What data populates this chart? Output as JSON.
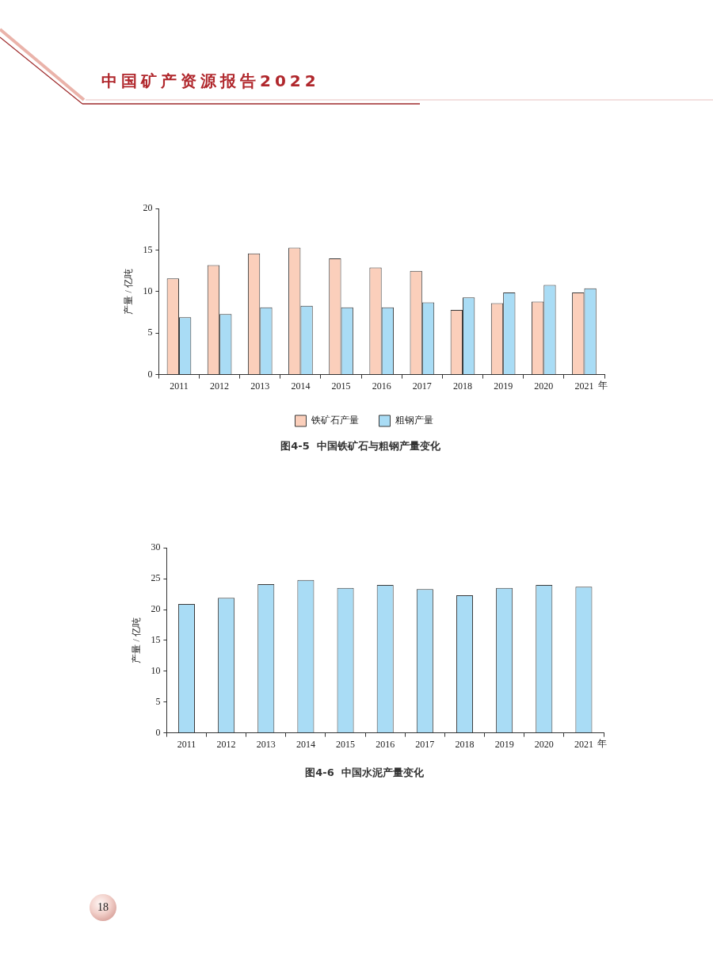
{
  "chart_data": [
    {
      "type": "bar",
      "title": "图4-5  中国铁矿石与粗钢产量变化",
      "xlabel": "年",
      "ylabel": "产量 / 亿吨",
      "annotations": [
        "中国矿产资源报告2022"
      ],
      "categories": [
        "2011",
        "2012",
        "2013",
        "2014",
        "2015",
        "2016",
        "2017",
        "2018",
        "2019",
        "2020",
        "2021"
      ],
      "series": [
        {
          "name": "铁矿石产量",
          "color": "#fbcfbb",
          "values": [
            11.6,
            13.2,
            14.6,
            15.3,
            14.0,
            12.9,
            12.5,
            7.8,
            8.6,
            8.8,
            9.9
          ]
        },
        {
          "name": "粗钢产量",
          "color": "#a9dcf5",
          "values": [
            6.9,
            7.3,
            8.1,
            8.3,
            8.1,
            8.1,
            8.7,
            9.3,
            9.9,
            10.8,
            10.4
          ]
        }
      ],
      "ylim": [
        0,
        20
      ],
      "yticks": [
        0,
        5,
        10,
        15,
        20
      ],
      "legend": "bottom"
    },
    {
      "type": "bar",
      "title": "图4-6  中国水泥产量变化",
      "xlabel": "年",
      "ylabel": "产量 / 亿吨",
      "annotations": [
        "18"
      ],
      "categories": [
        "2011",
        "2012",
        "2013",
        "2014",
        "2015",
        "2016",
        "2017",
        "2018",
        "2019",
        "2020",
        "2021"
      ],
      "series": [
        {
          "color": "#a9dcf5",
          "values": [
            20.9,
            21.9,
            24.1,
            24.8,
            23.5,
            24.0,
            23.3,
            22.3,
            23.5,
            24.0,
            23.7
          ]
        }
      ],
      "ylim": [
        0,
        30
      ],
      "yticks": [
        0,
        5,
        10,
        15,
        20,
        25,
        30
      ]
    }
  ]
}
